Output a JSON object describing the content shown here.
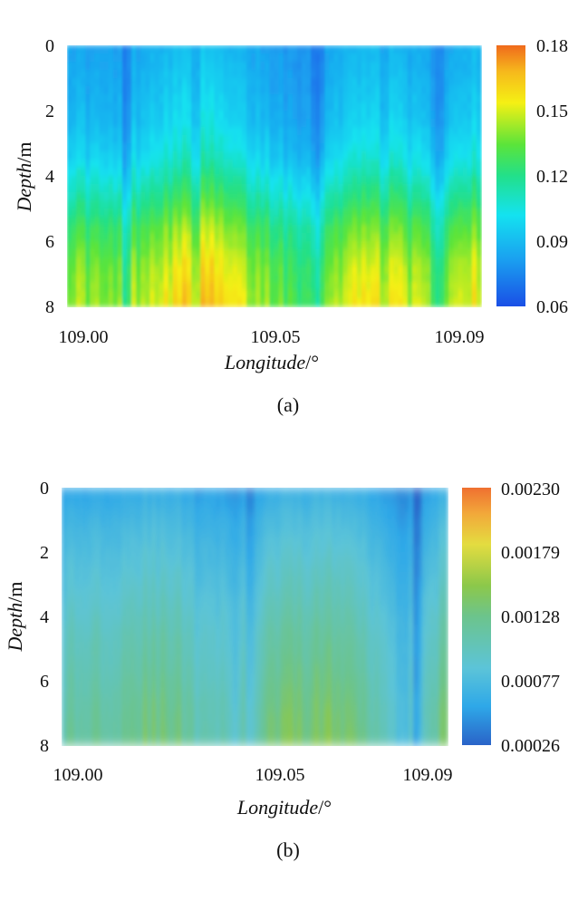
{
  "chart_data": [
    {
      "type": "heatmap",
      "panel_label": "(a)",
      "xlabel": "Longitude",
      "xlabel_unit": "/°",
      "ylabel": "Depth",
      "ylabel_unit": "/m",
      "xlim": [
        109.0,
        109.09
      ],
      "ylim": [
        0,
        8
      ],
      "x_ticks": [
        109.0,
        109.05,
        109.09
      ],
      "x_tick_labels": [
        "109.00",
        "109.05",
        "109.09"
      ],
      "y_ticks": [
        0,
        2,
        4,
        6,
        8
      ],
      "y_tick_labels": [
        "0",
        "2",
        "4",
        "6",
        "8"
      ],
      "y_inverted": true,
      "colorbar": {
        "min": 0.06,
        "max": 0.18,
        "ticks": [
          0.06,
          0.09,
          0.12,
          0.15,
          0.18
        ],
        "tick_labels": [
          "0.06",
          "0.09",
          "0.12",
          "0.15",
          "0.18"
        ],
        "colormap": "jet"
      },
      "description_values": {
        "depth_profile": [
          0.085,
          0.088,
          0.092,
          0.1,
          0.115,
          0.13,
          0.14,
          0.145
        ],
        "longitude_modulation": [
          0.0,
          -0.01,
          0.01,
          0.02,
          0.0,
          -0.015,
          0.005,
          0.015,
          -0.01,
          0.01
        ]
      }
    },
    {
      "type": "heatmap",
      "panel_label": "(b)",
      "xlabel": "Longitude",
      "xlabel_unit": "/°",
      "ylabel": "Depth",
      "ylabel_unit": "/m",
      "xlim": [
        109.0,
        109.09
      ],
      "ylim": [
        0,
        8
      ],
      "x_ticks": [
        109.0,
        109.05,
        109.09
      ],
      "x_tick_labels": [
        "109.00",
        "109.05",
        "109.09"
      ],
      "y_ticks": [
        0,
        2,
        4,
        6,
        8
      ],
      "y_tick_labels": [
        "0",
        "2",
        "4",
        "6",
        "8"
      ],
      "y_inverted": true,
      "colorbar": {
        "min": 0.00026,
        "max": 0.0023,
        "ticks": [
          0.00026,
          0.00077,
          0.00128,
          0.00179,
          0.0023
        ],
        "tick_labels": [
          "0.00026",
          "0.00077",
          "0.00128",
          "0.00179",
          "0.00230"
        ],
        "colormap": "parula-like"
      },
      "description_values": {
        "depth_profile": [
          0.0006,
          0.00075,
          0.00085,
          0.00095,
          0.00105,
          0.00112,
          0.0012,
          0.00125
        ],
        "longitude_modulation": [
          -0.0001,
          0.0,
          0.0001,
          0.0,
          -0.0003,
          0.0001,
          0.0002,
          0.0001,
          -0.0004,
          0.0001
        ]
      }
    }
  ]
}
